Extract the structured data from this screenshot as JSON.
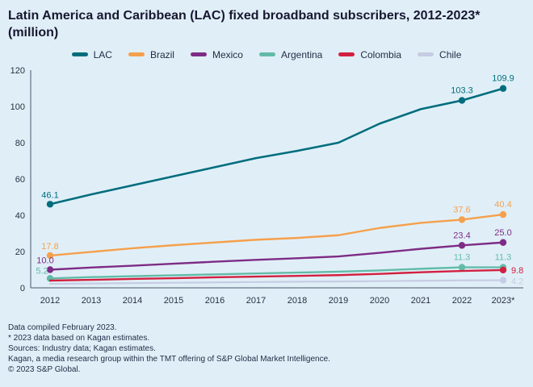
{
  "chart_data": {
    "type": "line",
    "title": "Latin America and Caribbean (LAC) fixed broadband subscribers, 2012-2023* (million)",
    "categories": [
      "2012",
      "2013",
      "2014",
      "2015",
      "2016",
      "2017",
      "2018",
      "2019",
      "2020",
      "2021",
      "2022",
      "2023*"
    ],
    "ylim": [
      0,
      120
    ],
    "yticks": [
      0,
      20,
      40,
      60,
      80,
      100,
      120
    ],
    "grid": false,
    "legend_position": "top",
    "series": [
      {
        "name": "LAC",
        "color": "#006d7d",
        "width": 2.6,
        "values": [
          46.1,
          51.5,
          56.5,
          61.5,
          66.5,
          71.5,
          75.5,
          80.0,
          90.5,
          98.5,
          103.3,
          109.9
        ],
        "marker_indices": [
          0,
          10,
          11
        ],
        "labels": [
          {
            "index": 0,
            "text": "46.1",
            "dx": 0,
            "dy": -8,
            "anchor": "middle"
          },
          {
            "index": 10,
            "text": "103.3",
            "dx": 0,
            "dy": -9,
            "anchor": "middle"
          },
          {
            "index": 11,
            "text": "109.9",
            "dx": 0,
            "dy": -9,
            "anchor": "middle"
          }
        ]
      },
      {
        "name": "Brazil",
        "color": "#f5a04c",
        "width": 2.4,
        "values": [
          17.8,
          19.8,
          21.8,
          23.5,
          25.0,
          26.5,
          27.5,
          29.0,
          33.0,
          35.8,
          37.6,
          40.4
        ],
        "marker_indices": [
          0,
          10,
          11
        ],
        "labels": [
          {
            "index": 0,
            "text": "17.8",
            "dx": 0,
            "dy": -8,
            "anchor": "middle"
          },
          {
            "index": 10,
            "text": "37.6",
            "dx": 0,
            "dy": -9,
            "anchor": "middle"
          },
          {
            "index": 11,
            "text": "40.4",
            "dx": 0,
            "dy": -9,
            "anchor": "middle"
          }
        ]
      },
      {
        "name": "Mexico",
        "color": "#7e2c85",
        "width": 2.4,
        "values": [
          10.0,
          11.2,
          12.2,
          13.3,
          14.4,
          15.4,
          16.3,
          17.3,
          19.3,
          21.5,
          23.4,
          25.0
        ],
        "marker_indices": [
          0,
          10,
          11
        ],
        "labels": [
          {
            "index": 0,
            "text": "10.0",
            "dx": -6,
            "dy": -8,
            "anchor": "middle"
          },
          {
            "index": 10,
            "text": "23.4",
            "dx": 0,
            "dy": -9,
            "anchor": "middle"
          },
          {
            "index": 11,
            "text": "25.0",
            "dx": 0,
            "dy": -9,
            "anchor": "middle"
          }
        ]
      },
      {
        "name": "Argentina",
        "color": "#62bba8",
        "width": 2.4,
        "values": [
          5.2,
          5.9,
          6.4,
          6.9,
          7.4,
          7.9,
          8.4,
          8.9,
          9.6,
          10.5,
          11.3,
          11.3
        ],
        "marker_indices": [
          0,
          10,
          11
        ],
        "labels": [
          {
            "index": 0,
            "text": "5.2",
            "dx": -10,
            "dy": -6,
            "anchor": "middle"
          },
          {
            "index": 10,
            "text": "11.3",
            "dx": 0,
            "dy": -9,
            "anchor": "middle"
          },
          {
            "index": 11,
            "text": "11.3",
            "dx": 0,
            "dy": -9,
            "anchor": "middle"
          }
        ]
      },
      {
        "name": "Colombia",
        "color": "#d2203f",
        "width": 2.4,
        "values": [
          4.0,
          4.4,
          4.9,
          5.3,
          5.8,
          6.2,
          6.6,
          7.0,
          7.7,
          8.6,
          9.3,
          9.8
        ],
        "marker_indices": [
          11
        ],
        "labels": [
          {
            "index": 11,
            "text": "9.8",
            "dx": 10,
            "dy": 4,
            "anchor": "start"
          }
        ]
      },
      {
        "name": "Chile",
        "color": "#c6cce4",
        "width": 2.2,
        "values": [
          2.2,
          2.4,
          2.6,
          2.8,
          3.0,
          3.2,
          3.4,
          3.5,
          3.7,
          3.9,
          4.1,
          4.2
        ],
        "marker_indices": [
          11
        ],
        "labels": [
          {
            "index": 11,
            "text": "4.2",
            "dx": 10,
            "dy": 5,
            "anchor": "start"
          }
        ]
      }
    ]
  },
  "footer": {
    "lines": [
      "Data compiled February 2023.",
      "* 2023 data based on Kagan estimates.",
      "Sources: Industry data; Kagan estimates.",
      "Kagan, a media research group within the TMT offering of S&P Global Market Intelligence.",
      "© 2023 S&P Global."
    ]
  }
}
